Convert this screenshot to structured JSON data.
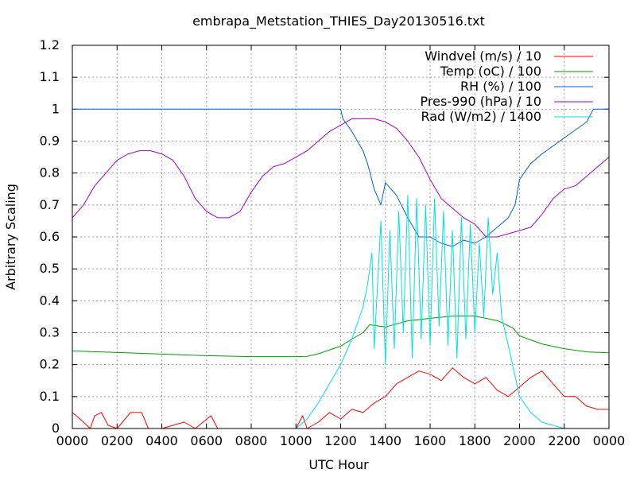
{
  "chart_data": {
    "type": "line",
    "title": "embrapa_Metstation_THIES_Day20130516.txt",
    "xlabel": "UTC Hour",
    "ylabel": "Arbitrary Scaling",
    "xlim": [
      0,
      2400
    ],
    "ylim": [
      0,
      1.2
    ],
    "grid": true,
    "legend_position": "top-right",
    "x_ticks": [
      "0000",
      "0200",
      "0400",
      "0600",
      "0800",
      "1000",
      "1200",
      "1400",
      "1600",
      "1800",
      "2000",
      "2200",
      "0000"
    ],
    "y_ticks": [
      "0",
      "0.1",
      "0.2",
      "0.3",
      "0.4",
      "0.5",
      "0.6",
      "0.7",
      "0.8",
      "0.9",
      "1",
      "1.1",
      "1.2"
    ],
    "series": [
      {
        "name": "Windvel (m/s) / 10",
        "color": "#ff0000",
        "points": [
          [
            0,
            0.05
          ],
          [
            50,
            0.02
          ],
          [
            80,
            0.0
          ],
          [
            100,
            0.04
          ],
          [
            130,
            0.05
          ],
          [
            160,
            0.01
          ],
          [
            200,
            0.0
          ],
          [
            260,
            0.05
          ],
          [
            310,
            0.05
          ],
          [
            340,
            0.0
          ],
          [
            400,
            0.0
          ],
          [
            500,
            0.02
          ],
          [
            550,
            0.0
          ],
          [
            620,
            0.04
          ],
          [
            650,
            0.0
          ],
          [
            700,
            0.0
          ],
          [
            800,
            0.0
          ],
          [
            900,
            0.0
          ],
          [
            1000,
            0.0
          ],
          [
            1030,
            0.04
          ],
          [
            1050,
            0.0
          ],
          [
            1100,
            0.02
          ],
          [
            1150,
            0.05
          ],
          [
            1200,
            0.03
          ],
          [
            1250,
            0.06
          ],
          [
            1300,
            0.05
          ],
          [
            1350,
            0.08
          ],
          [
            1400,
            0.1
          ],
          [
            1450,
            0.14
          ],
          [
            1500,
            0.16
          ],
          [
            1550,
            0.18
          ],
          [
            1600,
            0.17
          ],
          [
            1650,
            0.15
          ],
          [
            1700,
            0.19
          ],
          [
            1750,
            0.16
          ],
          [
            1800,
            0.14
          ],
          [
            1850,
            0.16
          ],
          [
            1900,
            0.12
          ],
          [
            1950,
            0.1
          ],
          [
            2000,
            0.13
          ],
          [
            2050,
            0.16
          ],
          [
            2100,
            0.18
          ],
          [
            2150,
            0.14
          ],
          [
            2200,
            0.1
          ],
          [
            2250,
            0.1
          ],
          [
            2300,
            0.07
          ],
          [
            2350,
            0.06
          ],
          [
            2400,
            0.06
          ]
        ]
      },
      {
        "name": "Temp (oC) / 100",
        "color": "#00a000",
        "points": [
          [
            0,
            0.243
          ],
          [
            200,
            0.238
          ],
          [
            400,
            0.233
          ],
          [
            600,
            0.228
          ],
          [
            800,
            0.225
          ],
          [
            1000,
            0.225
          ],
          [
            1050,
            0.226
          ],
          [
            1100,
            0.234
          ],
          [
            1200,
            0.258
          ],
          [
            1250,
            0.28
          ],
          [
            1300,
            0.3
          ],
          [
            1330,
            0.325
          ],
          [
            1400,
            0.318
          ],
          [
            1500,
            0.337
          ],
          [
            1600,
            0.345
          ],
          [
            1700,
            0.352
          ],
          [
            1800,
            0.352
          ],
          [
            1900,
            0.338
          ],
          [
            1970,
            0.315
          ],
          [
            2000,
            0.29
          ],
          [
            2100,
            0.265
          ],
          [
            2200,
            0.25
          ],
          [
            2300,
            0.24
          ],
          [
            2400,
            0.237
          ]
        ]
      },
      {
        "name": "RH (%) / 100",
        "color": "#0060e0",
        "points": [
          [
            0,
            1.0
          ],
          [
            1200,
            1.0
          ],
          [
            1210,
            0.97
          ],
          [
            1250,
            0.93
          ],
          [
            1300,
            0.87
          ],
          [
            1320,
            0.83
          ],
          [
            1350,
            0.75
          ],
          [
            1380,
            0.7
          ],
          [
            1400,
            0.77
          ],
          [
            1450,
            0.73
          ],
          [
            1500,
            0.66
          ],
          [
            1550,
            0.6
          ],
          [
            1600,
            0.6
          ],
          [
            1650,
            0.58
          ],
          [
            1700,
            0.57
          ],
          [
            1750,
            0.59
          ],
          [
            1800,
            0.58
          ],
          [
            1850,
            0.6
          ],
          [
            1900,
            0.63
          ],
          [
            1950,
            0.66
          ],
          [
            1980,
            0.7
          ],
          [
            2000,
            0.78
          ],
          [
            2050,
            0.83
          ],
          [
            2100,
            0.86
          ],
          [
            2200,
            0.91
          ],
          [
            2300,
            0.96
          ],
          [
            2330,
            1.0
          ],
          [
            2400,
            1.0
          ]
        ]
      },
      {
        "name": "Pres-990 (hPa) / 10",
        "color": "#a000d0",
        "points": [
          [
            0,
            0.66
          ],
          [
            50,
            0.7
          ],
          [
            100,
            0.76
          ],
          [
            150,
            0.8
          ],
          [
            200,
            0.84
          ],
          [
            250,
            0.86
          ],
          [
            300,
            0.87
          ],
          [
            350,
            0.87
          ],
          [
            400,
            0.86
          ],
          [
            450,
            0.84
          ],
          [
            500,
            0.79
          ],
          [
            550,
            0.72
          ],
          [
            600,
            0.68
          ],
          [
            650,
            0.66
          ],
          [
            700,
            0.66
          ],
          [
            750,
            0.68
          ],
          [
            800,
            0.74
          ],
          [
            850,
            0.79
          ],
          [
            900,
            0.82
          ],
          [
            950,
            0.83
          ],
          [
            1000,
            0.85
          ],
          [
            1050,
            0.87
          ],
          [
            1100,
            0.9
          ],
          [
            1150,
            0.93
          ],
          [
            1200,
            0.95
          ],
          [
            1250,
            0.97
          ],
          [
            1300,
            0.97
          ],
          [
            1350,
            0.97
          ],
          [
            1400,
            0.96
          ],
          [
            1450,
            0.94
          ],
          [
            1500,
            0.9
          ],
          [
            1550,
            0.85
          ],
          [
            1600,
            0.78
          ],
          [
            1650,
            0.72
          ],
          [
            1700,
            0.69
          ],
          [
            1750,
            0.66
          ],
          [
            1800,
            0.64
          ],
          [
            1850,
            0.6
          ],
          [
            1900,
            0.6
          ],
          [
            1950,
            0.61
          ],
          [
            2000,
            0.62
          ],
          [
            2050,
            0.63
          ],
          [
            2100,
            0.67
          ],
          [
            2150,
            0.72
          ],
          [
            2200,
            0.75
          ],
          [
            2250,
            0.76
          ],
          [
            2300,
            0.79
          ],
          [
            2350,
            0.82
          ],
          [
            2400,
            0.85
          ]
        ]
      },
      {
        "name": "Rad (W/m2) / 1400",
        "color": "#00e0e0",
        "points": [
          [
            0,
            0.0
          ],
          [
            1000,
            0.0
          ],
          [
            1050,
            0.03
          ],
          [
            1100,
            0.08
          ],
          [
            1150,
            0.14
          ],
          [
            1200,
            0.2
          ],
          [
            1250,
            0.28
          ],
          [
            1300,
            0.38
          ],
          [
            1320,
            0.45
          ],
          [
            1340,
            0.55
          ],
          [
            1350,
            0.25
          ],
          [
            1380,
            0.65
          ],
          [
            1400,
            0.2
          ],
          [
            1420,
            0.62
          ],
          [
            1440,
            0.25
          ],
          [
            1460,
            0.68
          ],
          [
            1480,
            0.3
          ],
          [
            1500,
            0.73
          ],
          [
            1520,
            0.22
          ],
          [
            1540,
            0.72
          ],
          [
            1560,
            0.28
          ],
          [
            1580,
            0.7
          ],
          [
            1600,
            0.26
          ],
          [
            1620,
            0.72
          ],
          [
            1640,
            0.32
          ],
          [
            1660,
            0.68
          ],
          [
            1680,
            0.26
          ],
          [
            1700,
            0.62
          ],
          [
            1720,
            0.22
          ],
          [
            1740,
            0.66
          ],
          [
            1760,
            0.28
          ],
          [
            1780,
            0.64
          ],
          [
            1800,
            0.3
          ],
          [
            1820,
            0.58
          ],
          [
            1840,
            0.35
          ],
          [
            1860,
            0.66
          ],
          [
            1880,
            0.42
          ],
          [
            1900,
            0.55
          ],
          [
            1920,
            0.35
          ],
          [
            1950,
            0.26
          ],
          [
            2000,
            0.1
          ],
          [
            2050,
            0.05
          ],
          [
            2100,
            0.02
          ],
          [
            2150,
            0.01
          ],
          [
            2200,
            0.0
          ],
          [
            2400,
            0.0
          ]
        ]
      }
    ]
  }
}
